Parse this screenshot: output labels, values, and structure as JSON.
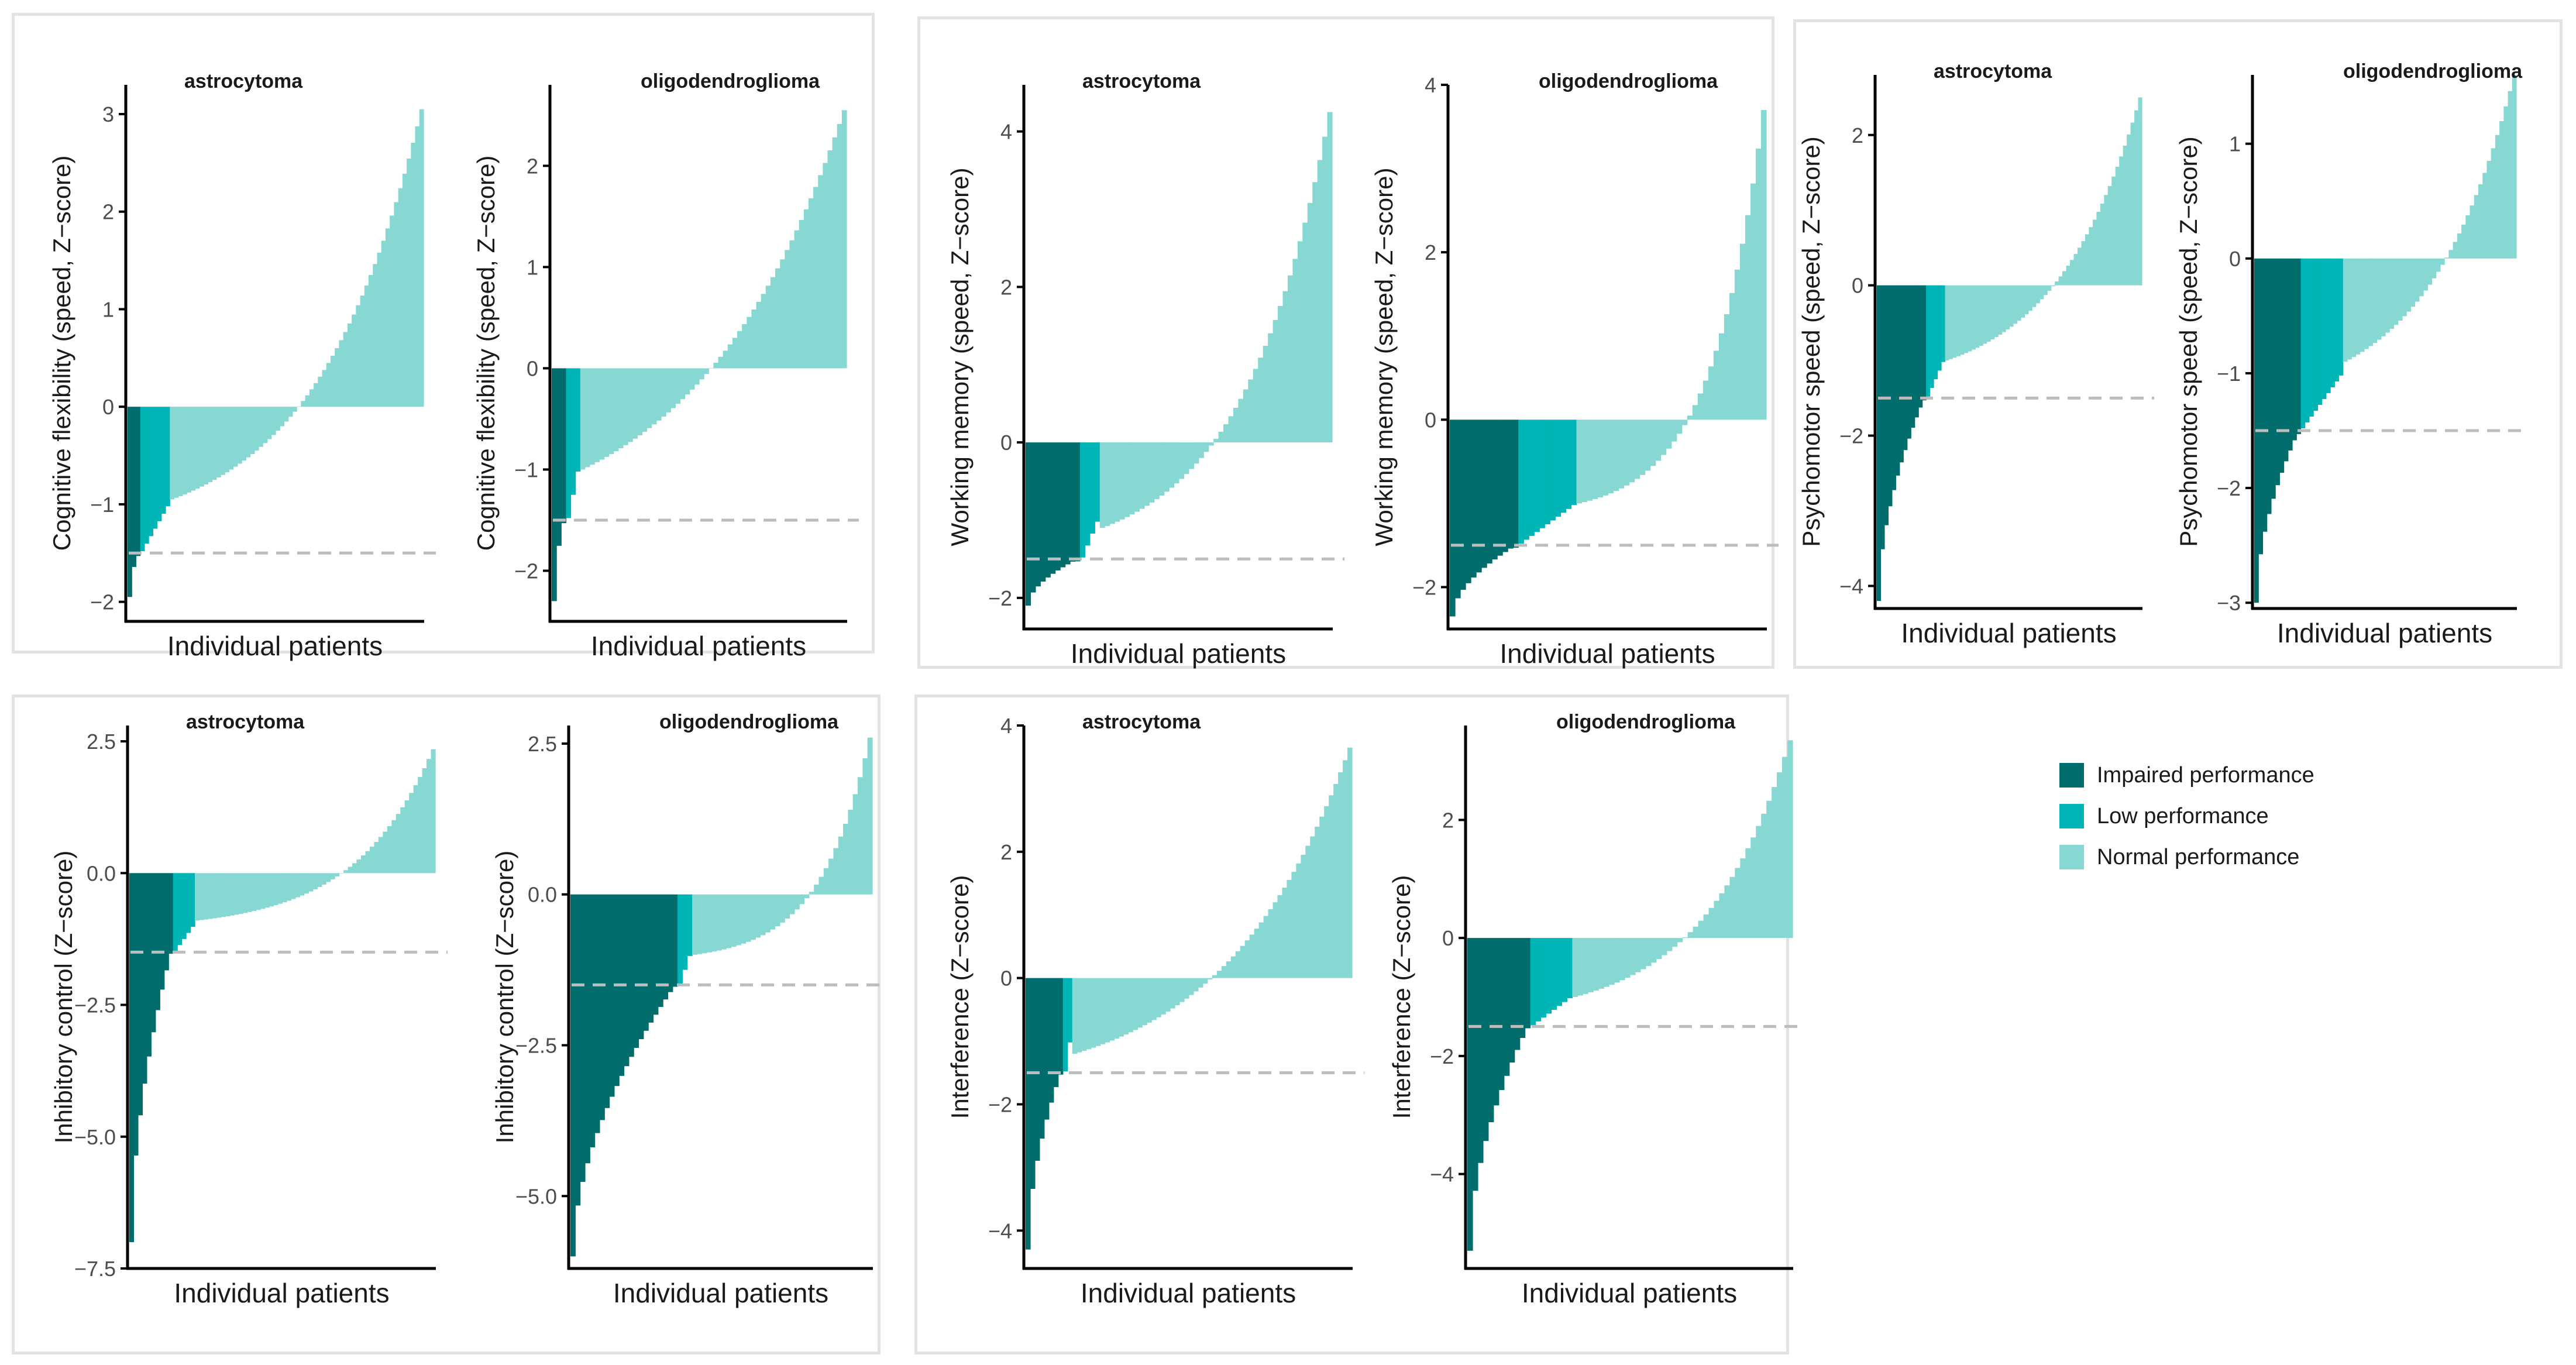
{
  "colors": {
    "impaired": "#006d6c",
    "low": "#00b5b5",
    "normal": "#87d8d2",
    "axis": "#000000",
    "threshold": "#bdbdbd",
    "text": "#1a1a1a"
  },
  "legend": {
    "items": [
      {
        "label": "Impaired performance",
        "color": "#006d6c"
      },
      {
        "label": "Low performance",
        "color": "#00b5b5"
      },
      {
        "label": "Normal performance",
        "color": "#87d8d2"
      }
    ]
  },
  "chart_data": [
    {
      "type": "bar",
      "title": "astrocytoma",
      "xlabel": "Individual patients",
      "ylabel": "Cognitive flexibility (speed, Z−score)",
      "ylim": [
        -2.2,
        3.3
      ],
      "ticks": [
        -2,
        -1,
        0,
        1,
        2,
        3
      ],
      "tick_labels": [
        "−2",
        "−1",
        "0",
        "1",
        "2",
        "3"
      ],
      "threshold": -1.5,
      "n": 70,
      "counts": {
        "impaired": 3,
        "low": 7,
        "normal": 60
      },
      "min": -1.95,
      "max": 3.05,
      "normal_start": -0.95,
      "shape": 2.4
    },
    {
      "type": "bar",
      "title": "oligodendroglioma",
      "xlabel": "Individual patients",
      "ylabel": "Cognitive flexibility (speed, Z−score)",
      "ylim": [
        -2.5,
        2.8
      ],
      "ticks": [
        -2,
        -1,
        0,
        1,
        2
      ],
      "tick_labels": [
        "−2",
        "−1",
        "0",
        "1",
        "2"
      ],
      "threshold": -1.5,
      "n": 62,
      "counts": {
        "impaired": 3,
        "low": 3,
        "normal": 56
      },
      "min": -2.3,
      "max": 2.55,
      "normal_start": -1.0,
      "shape": 1.8
    },
    {
      "type": "bar",
      "title": "astrocytoma",
      "xlabel": "Individual patients",
      "ylabel": "Working memory (speed, Z−score)",
      "ylim": [
        -2.4,
        4.6
      ],
      "ticks": [
        -2,
        0,
        2,
        4
      ],
      "tick_labels": [
        "−2",
        "0",
        "2",
        "4"
      ],
      "threshold": -1.5,
      "n": 62,
      "counts": {
        "impaired": 11,
        "low": 4,
        "normal": 47
      },
      "min": -2.1,
      "max": 4.25,
      "normal_start": -1.1,
      "shape": 2.6
    },
    {
      "type": "bar",
      "title": "oligodendroglioma",
      "xlabel": "Individual patients",
      "ylabel": "Working memory (speed, Z−score)",
      "ylim": [
        -2.5,
        4.0
      ],
      "ticks": [
        -2,
        0,
        2,
        4
      ],
      "tick_labels": [
        "−2",
        "0",
        "2",
        "4"
      ],
      "threshold": -1.5,
      "n": 60,
      "counts": {
        "impaired": 13,
        "low": 11,
        "normal": 36
      },
      "min": -2.35,
      "max": 3.7,
      "normal_start": -1.0,
      "shape": 3.5
    },
    {
      "type": "bar",
      "title": "astrocytoma",
      "xlabel": "Individual patients",
      "ylabel": "Psychomotor speed (speed, Z−score)",
      "ylim": [
        -4.3,
        2.8
      ],
      "ticks": [
        -4,
        -2,
        0,
        2
      ],
      "tick_labels": [
        "−4",
        "−2",
        "0",
        "2"
      ],
      "threshold": -1.5,
      "n": 70,
      "counts": {
        "impaired": 13,
        "low": 5,
        "normal": 52
      },
      "min": -4.2,
      "max": 2.5,
      "normal_start": -1.0,
      "shape": 2.3
    },
    {
      "type": "bar",
      "title": "oligodendroglioma",
      "xlabel": "Individual patients",
      "ylabel": "Psychomotor speed (speed, Z−score)",
      "ylim": [
        -3.05,
        1.6
      ],
      "ticks": [
        -3,
        -2,
        -1,
        0,
        1
      ],
      "tick_labels": [
        "−3",
        "−2",
        "−1",
        "0",
        "1"
      ],
      "threshold": -1.5,
      "n": 62,
      "counts": {
        "impaired": 11,
        "low": 10,
        "normal": 41
      },
      "min": -3.0,
      "max": 1.6,
      "normal_start": -0.9,
      "shape": 2.0
    },
    {
      "type": "bar",
      "title": "astrocytoma",
      "xlabel": "Individual patients",
      "ylabel": "Inhibitory control (Z−score)",
      "ylim": [
        -7.5,
        2.8
      ],
      "ticks": [
        -7.5,
        -5,
        -2.5,
        0,
        2.5
      ],
      "tick_labels": [
        "−7.5",
        "−5.0",
        "−2.5",
        "0.0",
        "2.5"
      ],
      "threshold": -1.5,
      "n": 70,
      "counts": {
        "impaired": 10,
        "low": 5,
        "normal": 55
      },
      "min": -7.0,
      "max": 2.35,
      "normal_start": -0.9,
      "shape": 3.0
    },
    {
      "type": "bar",
      "title": "oligodendroglioma",
      "xlabel": "Individual patients",
      "ylabel": "Inhibitory control (Z−score)",
      "ylim": [
        -6.2,
        2.8
      ],
      "ticks": [
        -5,
        -2.5,
        0,
        2.5
      ],
      "tick_labels": [
        "−5.0",
        "−2.5",
        "0.0",
        "2.5"
      ],
      "threshold": -1.5,
      "n": 62,
      "counts": {
        "impaired": 22,
        "low": 3,
        "normal": 37
      },
      "min": -6.0,
      "max": 2.6,
      "normal_start": -1.0,
      "shape": 3.5
    },
    {
      "type": "bar",
      "title": "astrocytoma",
      "xlabel": "Individual patients",
      "ylabel": "Interference (Z−score)",
      "ylim": [
        -4.6,
        4.0
      ],
      "ticks": [
        -4,
        -2,
        0,
        2,
        4
      ],
      "tick_labels": [
        "−4",
        "−2",
        "0",
        "2",
        "4"
      ],
      "threshold": -1.5,
      "n": 70,
      "counts": {
        "impaired": 8,
        "low": 2,
        "normal": 60
      },
      "min": -4.3,
      "max": 3.65,
      "normal_start": -1.2,
      "shape": 2.2
    },
    {
      "type": "bar",
      "title": "oligodendroglioma",
      "xlabel": "Individual patients",
      "ylabel": "Interference (Z−score)",
      "ylim": [
        -5.6,
        3.6
      ],
      "ticks": [
        -4,
        -2,
        0,
        2
      ],
      "tick_labels": [
        "−4",
        "−2",
        "0",
        "2"
      ],
      "threshold": -1.5,
      "n": 62,
      "counts": {
        "impaired": 12,
        "low": 8,
        "normal": 42
      },
      "min": -5.3,
      "max": 3.35,
      "normal_start": -1.0,
      "shape": 2.5
    }
  ]
}
